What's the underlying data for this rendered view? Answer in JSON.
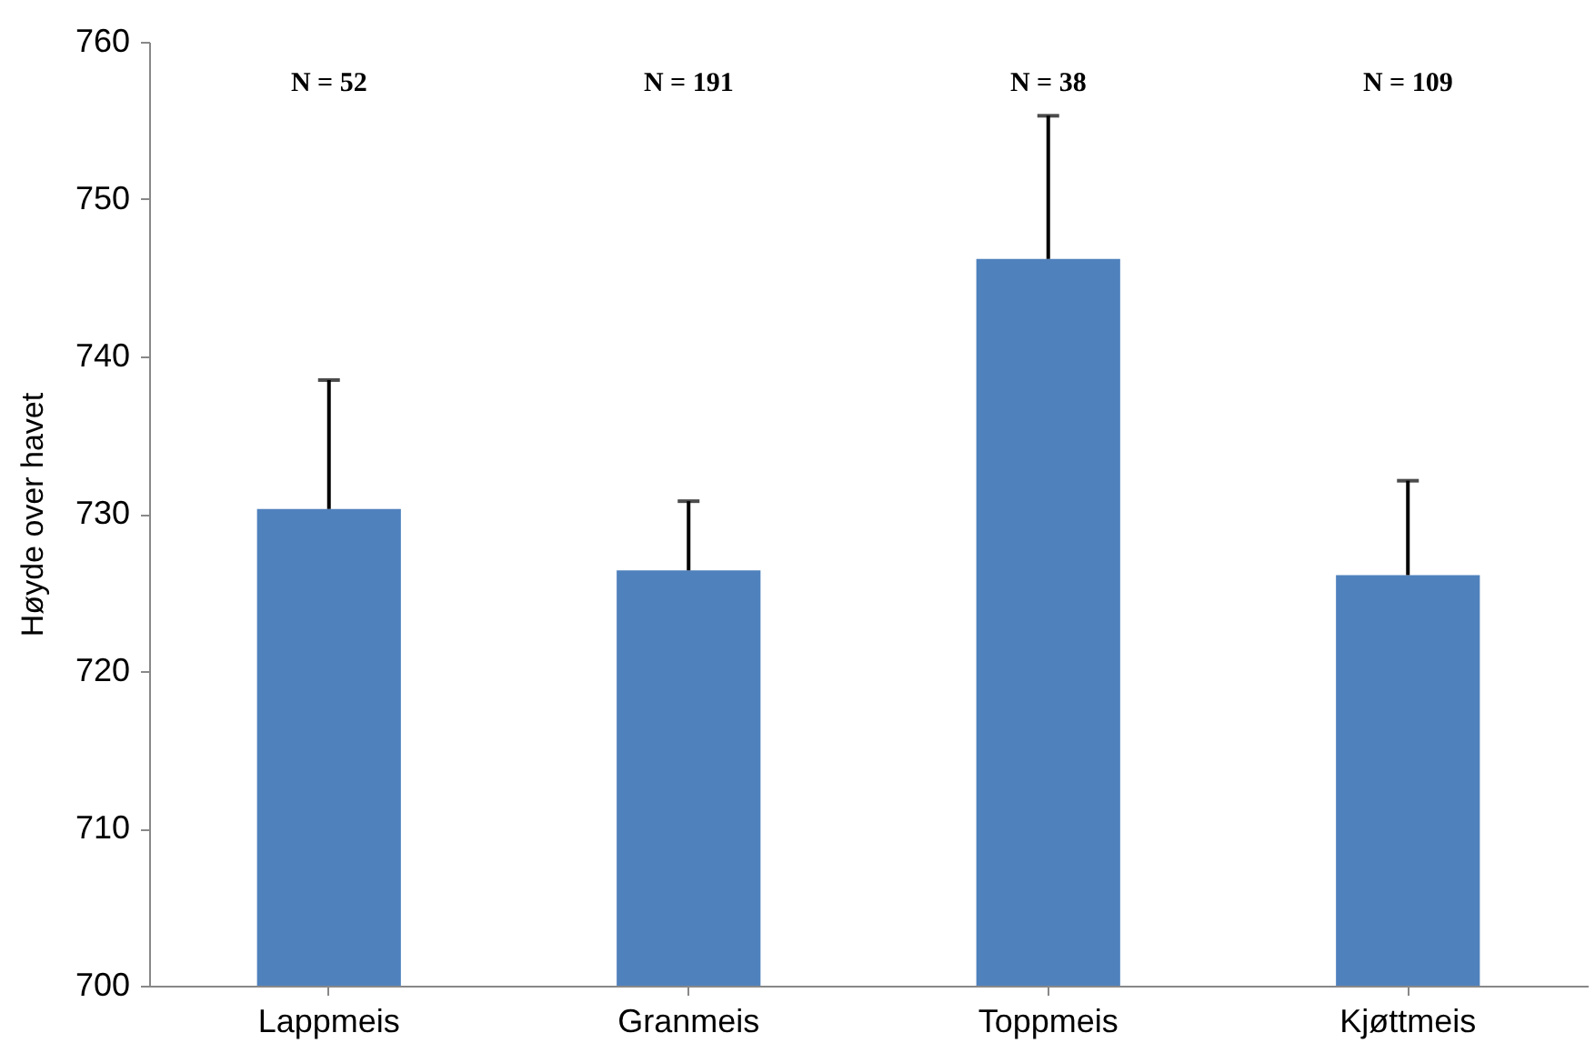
{
  "chart_data": {
    "type": "bar",
    "ylabel": "Høyde over havet",
    "categories": [
      "Lappmeis",
      "Granmeis",
      "Toppmeis",
      "Kjøttmeis"
    ],
    "values": [
      730.3,
      726.4,
      746.2,
      726.1
    ],
    "errors": [
      [
        730.3,
        738.5
      ],
      [
        726.4,
        730.8
      ],
      [
        746.2,
        755.3
      ],
      [
        726.1,
        732.1
      ]
    ],
    "color": "#4f81bd",
    "ylim": [
      700,
      760
    ],
    "yticks": [
      700,
      710,
      720,
      730,
      740,
      750,
      760
    ],
    "grid": false,
    "annotations": [
      "N = 52",
      "N = 191",
      "N = 38",
      "N = 109"
    ]
  }
}
